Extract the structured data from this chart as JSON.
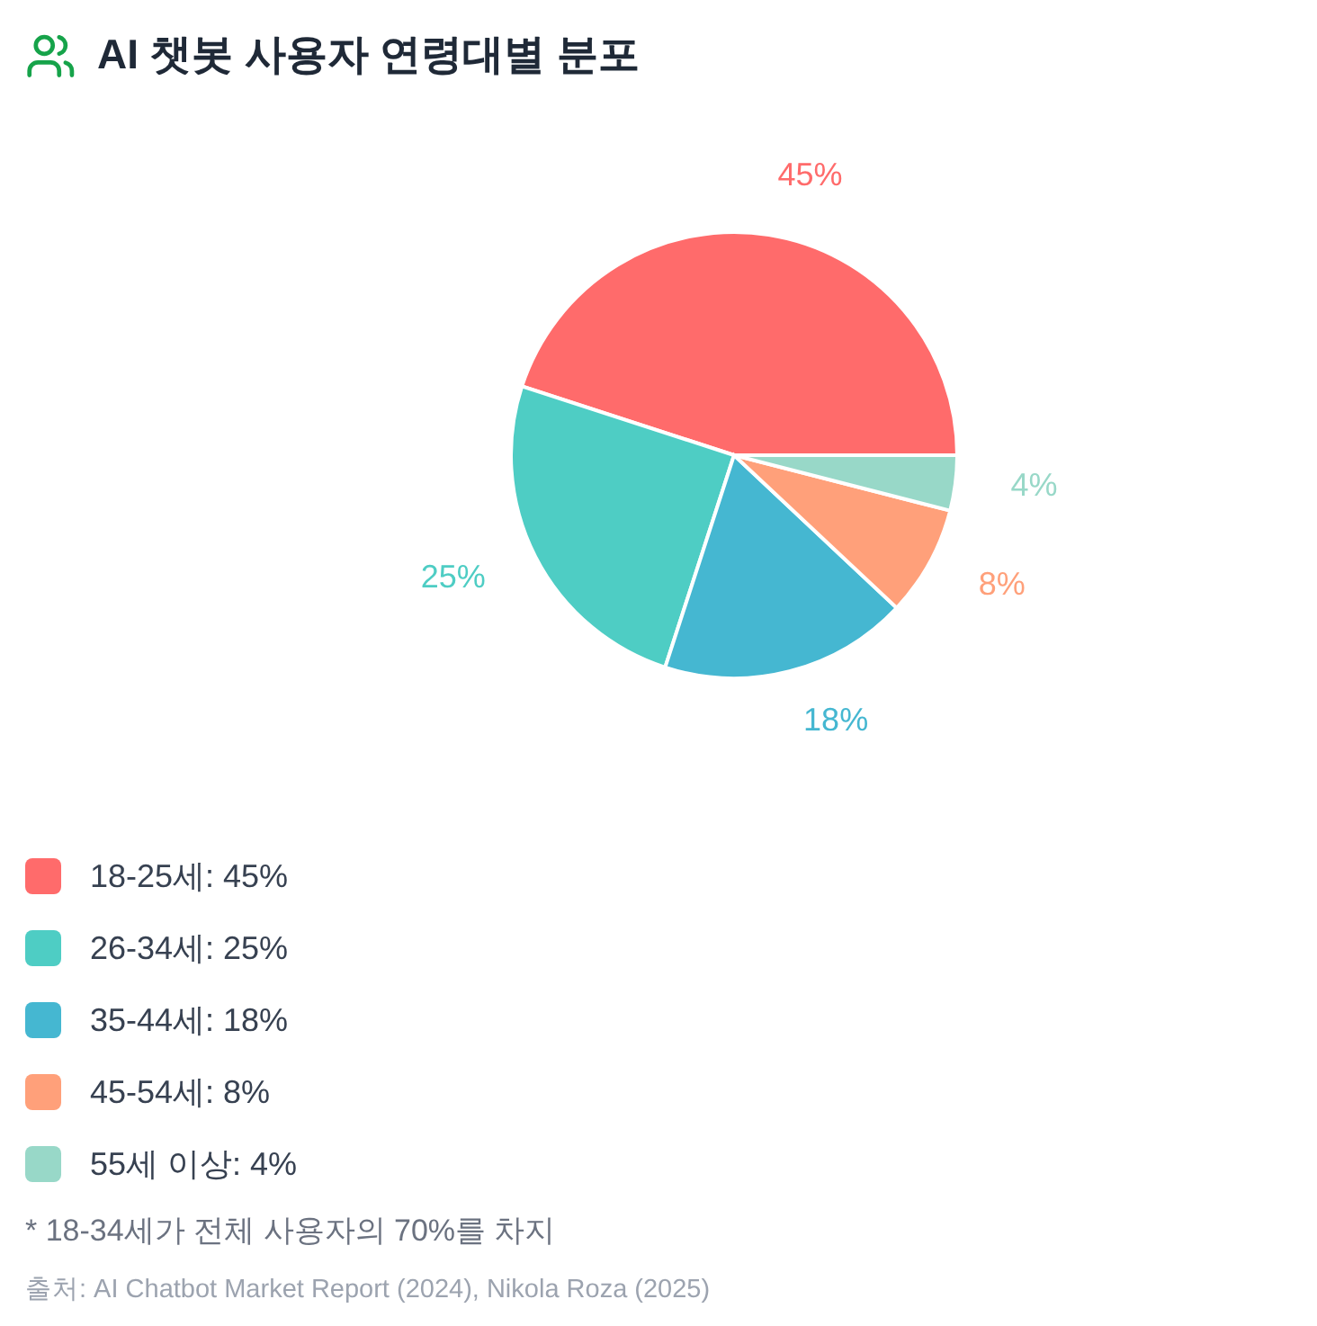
{
  "chart_data": {
    "type": "pie",
    "title": "AI 챗봇 사용자 연령대별 분포",
    "categories": [
      "18-25세",
      "26-34세",
      "35-44세",
      "45-54세",
      "55세 이상"
    ],
    "values": [
      45,
      25,
      18,
      8,
      4
    ],
    "colors": [
      "#ff6b6b",
      "#4ecdc4",
      "#45b7d1",
      "#ffa07a",
      "#98d8c8"
    ],
    "value_labels": [
      "45%",
      "25%",
      "18%",
      "8%",
      "4%"
    ],
    "legend": "bottom",
    "annotations": [
      "* 18-34세가 전체 사용자의 70%를 차지",
      "출처: AI Chatbot Market Report (2024), Nikola Roza (2025)"
    ]
  }
}
